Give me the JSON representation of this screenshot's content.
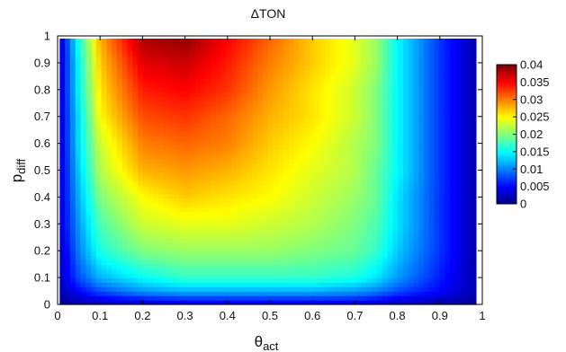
{
  "chart_data": {
    "type": "heatmap",
    "title": "ΔTON",
    "xlabel": {
      "base": "θ",
      "sub": "act"
    },
    "ylabel": {
      "base": "p",
      "sub": "diff"
    },
    "xlim": [
      0,
      1
    ],
    "ylim": [
      0,
      1
    ],
    "x_ticks": [
      "0",
      "0.1",
      "0.2",
      "0.3",
      "0.4",
      "0.5",
      "0.6",
      "0.7",
      "0.8",
      "0.9",
      "1"
    ],
    "y_ticks": [
      "0",
      "0.1",
      "0.2",
      "0.3",
      "0.4",
      "0.5",
      "0.6",
      "0.7",
      "0.8",
      "0.9",
      "1"
    ],
    "colorbar": {
      "range": [
        0,
        0.04
      ],
      "ticks": [
        "0",
        "0.005",
        "0.01",
        "0.015",
        "0.02",
        "0.025",
        "0.03",
        "0.035",
        "0.04"
      ],
      "colormap": "jet"
    },
    "data_coverage": {
      "x": [
        0.005,
        0.985
      ],
      "y": [
        0,
        0.99
      ]
    },
    "z_samples": {
      "x": [
        0.01,
        0.05,
        0.1,
        0.2,
        0.3,
        0.4,
        0.5,
        0.6,
        0.7,
        0.75,
        0.8,
        0.9,
        0.98
      ],
      "y": [
        0.01,
        0.05,
        0.1,
        0.2,
        0.3,
        0.4,
        0.5,
        0.6,
        0.7,
        0.8,
        0.9,
        0.98
      ],
      "z": [
        [
          0.001,
          0.002,
          0.003,
          0.004,
          0.005,
          0.005,
          0.005,
          0.005,
          0.005,
          0.004,
          0.003,
          0.002,
          0.001
        ],
        [
          0.002,
          0.005,
          0.008,
          0.011,
          0.012,
          0.012,
          0.012,
          0.012,
          0.011,
          0.01,
          0.008,
          0.005,
          0.002
        ],
        [
          0.003,
          0.008,
          0.012,
          0.015,
          0.017,
          0.017,
          0.017,
          0.017,
          0.016,
          0.014,
          0.011,
          0.006,
          0.002
        ],
        [
          0.003,
          0.01,
          0.016,
          0.02,
          0.021,
          0.021,
          0.021,
          0.02,
          0.019,
          0.017,
          0.013,
          0.007,
          0.002
        ],
        [
          0.004,
          0.011,
          0.018,
          0.023,
          0.024,
          0.024,
          0.023,
          0.022,
          0.02,
          0.018,
          0.014,
          0.007,
          0.002
        ],
        [
          0.004,
          0.012,
          0.02,
          0.025,
          0.027,
          0.026,
          0.025,
          0.023,
          0.021,
          0.019,
          0.014,
          0.007,
          0.002
        ],
        [
          0.004,
          0.013,
          0.022,
          0.028,
          0.029,
          0.028,
          0.026,
          0.024,
          0.022,
          0.019,
          0.015,
          0.007,
          0.002
        ],
        [
          0.004,
          0.014,
          0.023,
          0.03,
          0.031,
          0.03,
          0.027,
          0.025,
          0.022,
          0.02,
          0.015,
          0.007,
          0.002
        ],
        [
          0.004,
          0.014,
          0.025,
          0.032,
          0.033,
          0.031,
          0.028,
          0.026,
          0.023,
          0.02,
          0.015,
          0.007,
          0.002
        ],
        [
          0.004,
          0.015,
          0.026,
          0.034,
          0.035,
          0.033,
          0.029,
          0.026,
          0.023,
          0.02,
          0.015,
          0.007,
          0.002
        ],
        [
          0.004,
          0.015,
          0.027,
          0.036,
          0.037,
          0.034,
          0.03,
          0.027,
          0.024,
          0.021,
          0.015,
          0.007,
          0.002
        ],
        [
          0.004,
          0.016,
          0.028,
          0.038,
          0.039,
          0.035,
          0.031,
          0.027,
          0.024,
          0.021,
          0.015,
          0.007,
          0.002
        ]
      ]
    }
  }
}
